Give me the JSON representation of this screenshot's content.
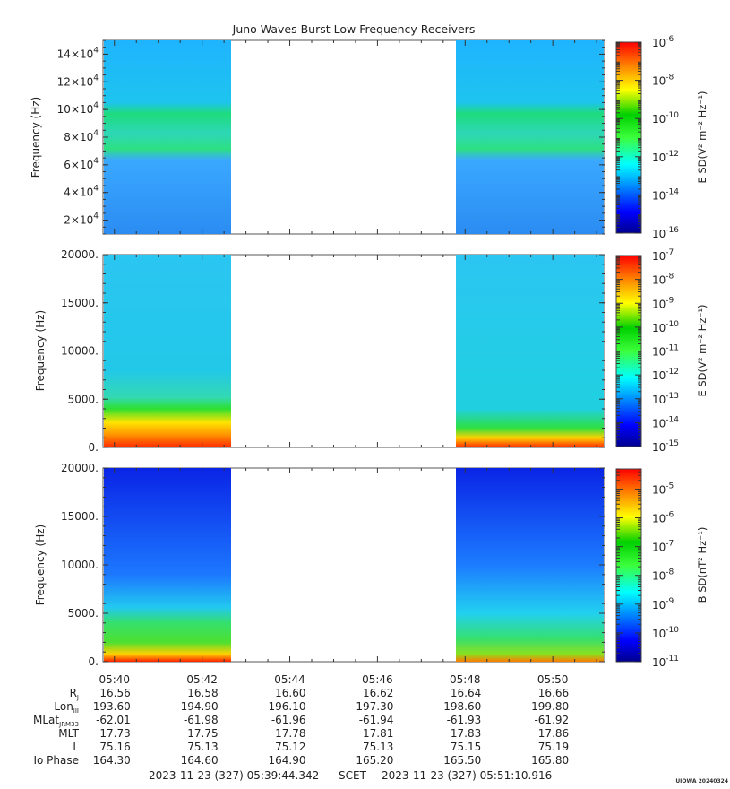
{
  "title": "Juno Waves Burst Low Frequency Receivers",
  "chart_data": [
    {
      "type": "heatmap",
      "ylabel": "Frequency (Hz)",
      "yticks": [
        {
          "value": 20000,
          "base": "2",
          "exp": "4"
        },
        {
          "value": 40000,
          "base": "4",
          "exp": "4"
        },
        {
          "value": 60000,
          "base": "6",
          "exp": "4"
        },
        {
          "value": 80000,
          "base": "8",
          "exp": "4"
        },
        {
          "value": 100000,
          "base": "10",
          "exp": "4"
        },
        {
          "value": 120000,
          "base": "12",
          "exp": "4"
        },
        {
          "value": 140000,
          "base": "14",
          "exp": "4"
        }
      ],
      "ylim": [
        10000,
        150000
      ],
      "colorbar": {
        "label": "E SD(V² m⁻² Hz⁻¹)",
        "log_range": [
          -16,
          -6
        ],
        "ticks": [
          "-6",
          "-8",
          "-10",
          "-12",
          "-14",
          "-16"
        ]
      }
    },
    {
      "type": "heatmap",
      "ylabel": "Frequency (Hz)",
      "yticks": [
        "0.",
        "5000.",
        "10000.",
        "15000.",
        "20000."
      ],
      "ylim": [
        0,
        20000
      ],
      "colorbar": {
        "label": "E SD(V² m⁻² Hz⁻¹)",
        "log_range": [
          -15,
          -7
        ],
        "ticks": [
          "-7",
          "-8",
          "-9",
          "-10",
          "-11",
          "-12",
          "-13",
          "-14",
          "-15"
        ]
      }
    },
    {
      "type": "heatmap",
      "ylabel": "Frequency (Hz)",
      "yticks": [
        "0.",
        "5000.",
        "10000.",
        "15000.",
        "20000."
      ],
      "ylim": [
        0,
        20000
      ],
      "colorbar": {
        "label": "B SD(nT² Hz⁻¹)",
        "log_range": [
          -11,
          -4.3
        ],
        "ticks": [
          "-5",
          "-6",
          "-7",
          "-8",
          "-9",
          "-10",
          "-11"
        ]
      }
    }
  ],
  "x_axis": {
    "ticks": [
      "05:40",
      "05:42",
      "05:44",
      "05:46",
      "05:48",
      "05:50"
    ],
    "data_gap": [
      "05:42:37",
      "05:47:43"
    ]
  },
  "ephemeris": [
    {
      "label": "R",
      "sub": "J",
      "values": [
        "16.56",
        "16.58",
        "16.60",
        "16.62",
        "16.64",
        "16.66"
      ]
    },
    {
      "label": "Lon",
      "sub": "III",
      "values": [
        "193.60",
        "194.90",
        "196.10",
        "197.30",
        "198.60",
        "199.80"
      ]
    },
    {
      "label": "MLat",
      "sub": "JRM33",
      "values": [
        "-62.01",
        "-61.98",
        "-61.96",
        "-61.94",
        "-61.93",
        "-61.92"
      ]
    },
    {
      "label": "MLT",
      "sub": "",
      "values": [
        "17.73",
        "17.75",
        "17.78",
        "17.81",
        "17.83",
        "17.86"
      ]
    },
    {
      "label": "L",
      "sub": "",
      "values": [
        "75.16",
        "75.13",
        "75.12",
        "75.13",
        "75.15",
        "75.19"
      ]
    },
    {
      "label": "Io Phase",
      "sub": "",
      "values": [
        "164.30",
        "164.60",
        "164.90",
        "165.20",
        "165.50",
        "165.80"
      ]
    }
  ],
  "footer": {
    "start": "2023-11-23 (327) 05:39:44.342",
    "scet": "SCET",
    "end": "2023-11-23 (327) 05:51:10.916",
    "stamp": "UIOWA 20240324"
  }
}
